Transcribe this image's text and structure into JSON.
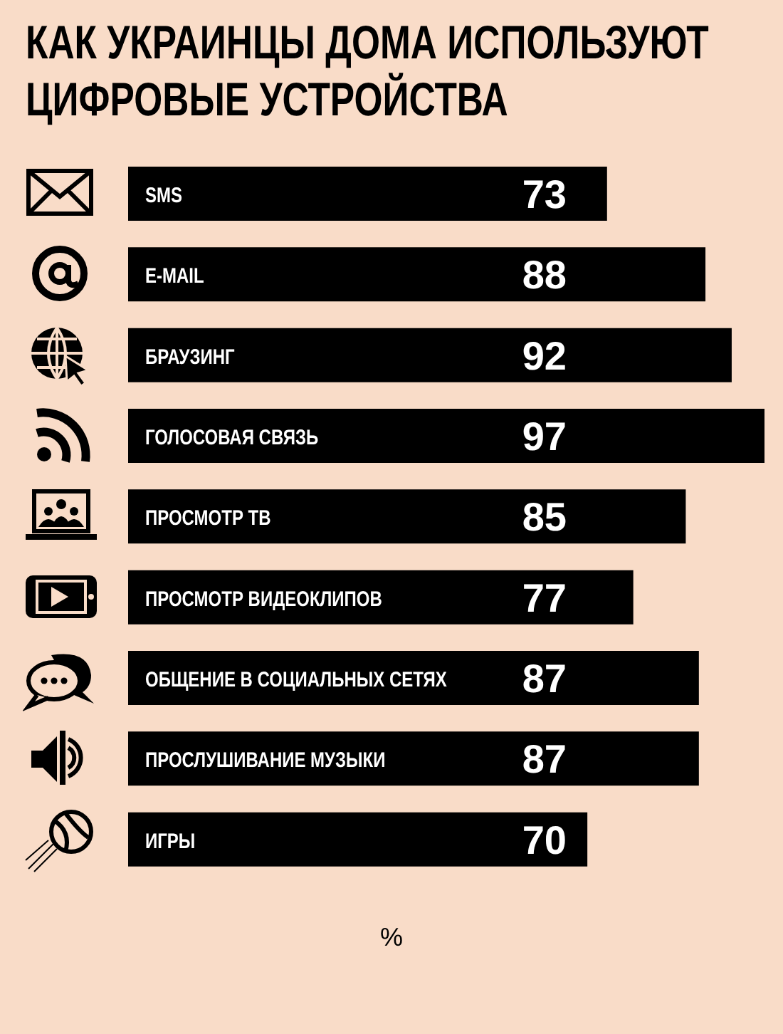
{
  "chart_data": {
    "type": "bar",
    "orientation": "horizontal",
    "title": "КАК УКРАИНЦЫ ДОМА ИСПОЛЬЗУЮТ ЦИФРОВЫЕ УСТРОЙСТВА",
    "xlabel": "%",
    "categories": [
      "SMS",
      "E-MAIL",
      "БРАУЗИНГ",
      "ГОЛОСОВАЯ СВЯЗЬ",
      "ПРОСМОТР ТВ",
      "ПРОСМОТР ВИДЕОКЛИПОВ",
      "ОБЩЕНИЕ В СОЦИАЛЬНЫХ СЕТЯХ",
      "ПРОСЛУШИВАНИЕ МУЗЫКИ",
      "ИГРЫ"
    ],
    "values": [
      73,
      88,
      92,
      97,
      85,
      77,
      87,
      87,
      70
    ],
    "color": "#000000",
    "data_labels": true
  }
}
